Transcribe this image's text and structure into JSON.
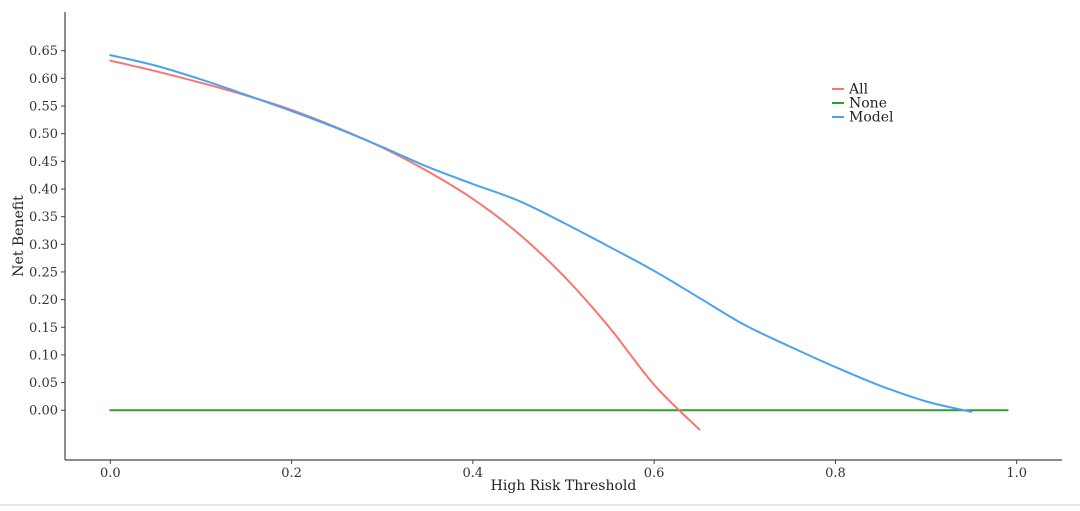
{
  "chart_data": {
    "type": "line",
    "title": "",
    "xlabel": "High Risk Threshold",
    "ylabel": "Net Benefit",
    "xlim": [
      -0.05,
      1.05
    ],
    "ylim": [
      -0.09,
      0.72
    ],
    "x_ticks": [
      0.0,
      0.2,
      0.4,
      0.6,
      0.8,
      1.0
    ],
    "x_tick_labels": [
      "0.0",
      "0.2",
      "0.4",
      "0.6",
      "0.8",
      "1.0"
    ],
    "y_ticks": [
      0.0,
      0.05,
      0.1,
      0.15,
      0.2,
      0.25,
      0.3,
      0.35,
      0.4,
      0.45,
      0.5,
      0.55,
      0.6,
      0.65
    ],
    "y_tick_labels": [
      "0.00",
      "0.05",
      "0.10",
      "0.15",
      "0.20",
      "0.25",
      "0.30",
      "0.35",
      "0.40",
      "0.45",
      "0.50",
      "0.55",
      "0.60",
      "0.65"
    ],
    "grid": false,
    "legend_position": "top-right",
    "series": [
      {
        "name": "All",
        "color": "#f8766d",
        "x": [
          0.0,
          0.05,
          0.1,
          0.15,
          0.2,
          0.25,
          0.3,
          0.35,
          0.4,
          0.45,
          0.5,
          0.55,
          0.6,
          0.65
        ],
        "y": [
          0.632,
          0.613,
          0.592,
          0.569,
          0.543,
          0.511,
          0.475,
          0.432,
          0.382,
          0.32,
          0.243,
          0.151,
          0.046,
          -0.035
        ]
      },
      {
        "name": "None",
        "color": "#2ca02c",
        "x": [
          0.0,
          0.99
        ],
        "y": [
          0.0,
          0.0
        ]
      },
      {
        "name": "Model",
        "color": "#4aa3f0",
        "x": [
          0.0,
          0.05,
          0.1,
          0.15,
          0.2,
          0.25,
          0.3,
          0.35,
          0.4,
          0.45,
          0.5,
          0.55,
          0.6,
          0.65,
          0.7,
          0.75,
          0.8,
          0.85,
          0.9,
          0.95
        ],
        "y": [
          0.642,
          0.623,
          0.598,
          0.57,
          0.541,
          0.51,
          0.476,
          0.44,
          0.409,
          0.379,
          0.339,
          0.296,
          0.252,
          0.203,
          0.154,
          0.115,
          0.078,
          0.044,
          0.016,
          -0.003
        ]
      }
    ]
  }
}
